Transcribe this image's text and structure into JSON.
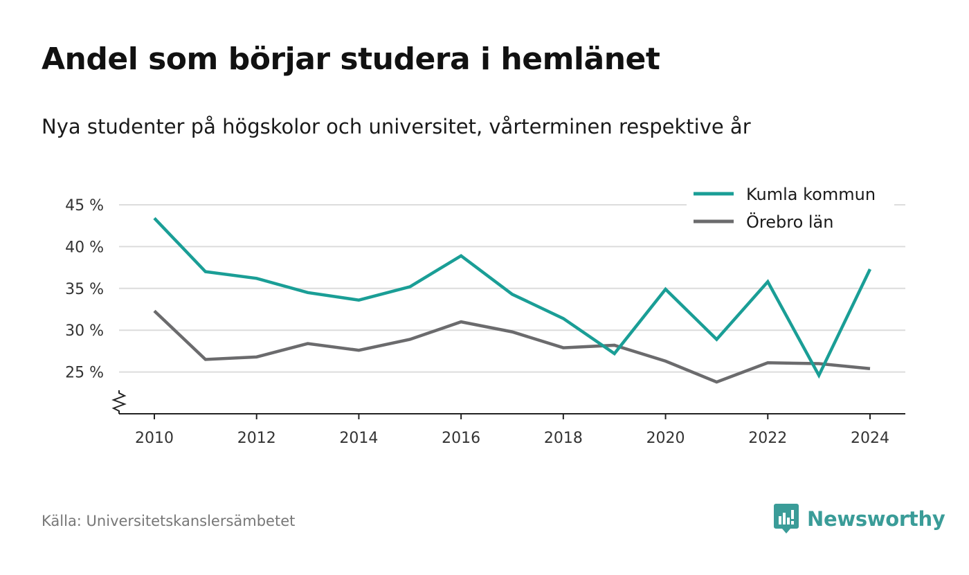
{
  "title": "Andel som börjar studera i hemlänet",
  "subtitle": "Nya studenter på högskolor och universitet, vårterminen respektive år",
  "source": "Källa: Universitetskanslersämbetet",
  "brand": {
    "name": "Newsworthy",
    "icon": "newsworthy-logo-icon",
    "color": "#3a9c98"
  },
  "chart_data": {
    "type": "line",
    "title": "Andel som börjar studera i hemlänet",
    "subtitle": "Nya studenter på högskolor och universitet, vårterminen respektive år",
    "x": [
      2010,
      2011,
      2012,
      2013,
      2014,
      2015,
      2016,
      2017,
      2018,
      2019,
      2020,
      2021,
      2022,
      2023,
      2024
    ],
    "xticks": [
      2010,
      2012,
      2014,
      2016,
      2018,
      2020,
      2022,
      2024
    ],
    "xtick_labels": [
      "2010",
      "2012",
      "2014",
      "2016",
      "2018",
      "2020",
      "2022",
      "2024"
    ],
    "xlim": [
      2009.3,
      2024.7
    ],
    "yticks": [
      25,
      30,
      35,
      40,
      45
    ],
    "ytick_labels": [
      "25 %",
      "30 %",
      "35 %",
      "40 %",
      "45 %"
    ],
    "ylim": [
      20,
      45
    ],
    "axis_break": true,
    "grid": "horizontal",
    "legend_position": "top-right",
    "series": [
      {
        "name": "Kumla kommun",
        "color": "#1a9e96",
        "values": [
          43.4,
          37.0,
          36.2,
          34.5,
          33.6,
          35.2,
          38.9,
          34.3,
          31.4,
          27.2,
          34.9,
          28.9,
          35.8,
          24.6,
          37.3
        ]
      },
      {
        "name": "Örebro län",
        "color": "#6b6b6d",
        "values": [
          32.3,
          26.5,
          26.8,
          28.4,
          27.6,
          28.9,
          31.0,
          29.8,
          27.9,
          28.2,
          26.3,
          23.8,
          26.1,
          26.0,
          25.4
        ]
      }
    ]
  }
}
